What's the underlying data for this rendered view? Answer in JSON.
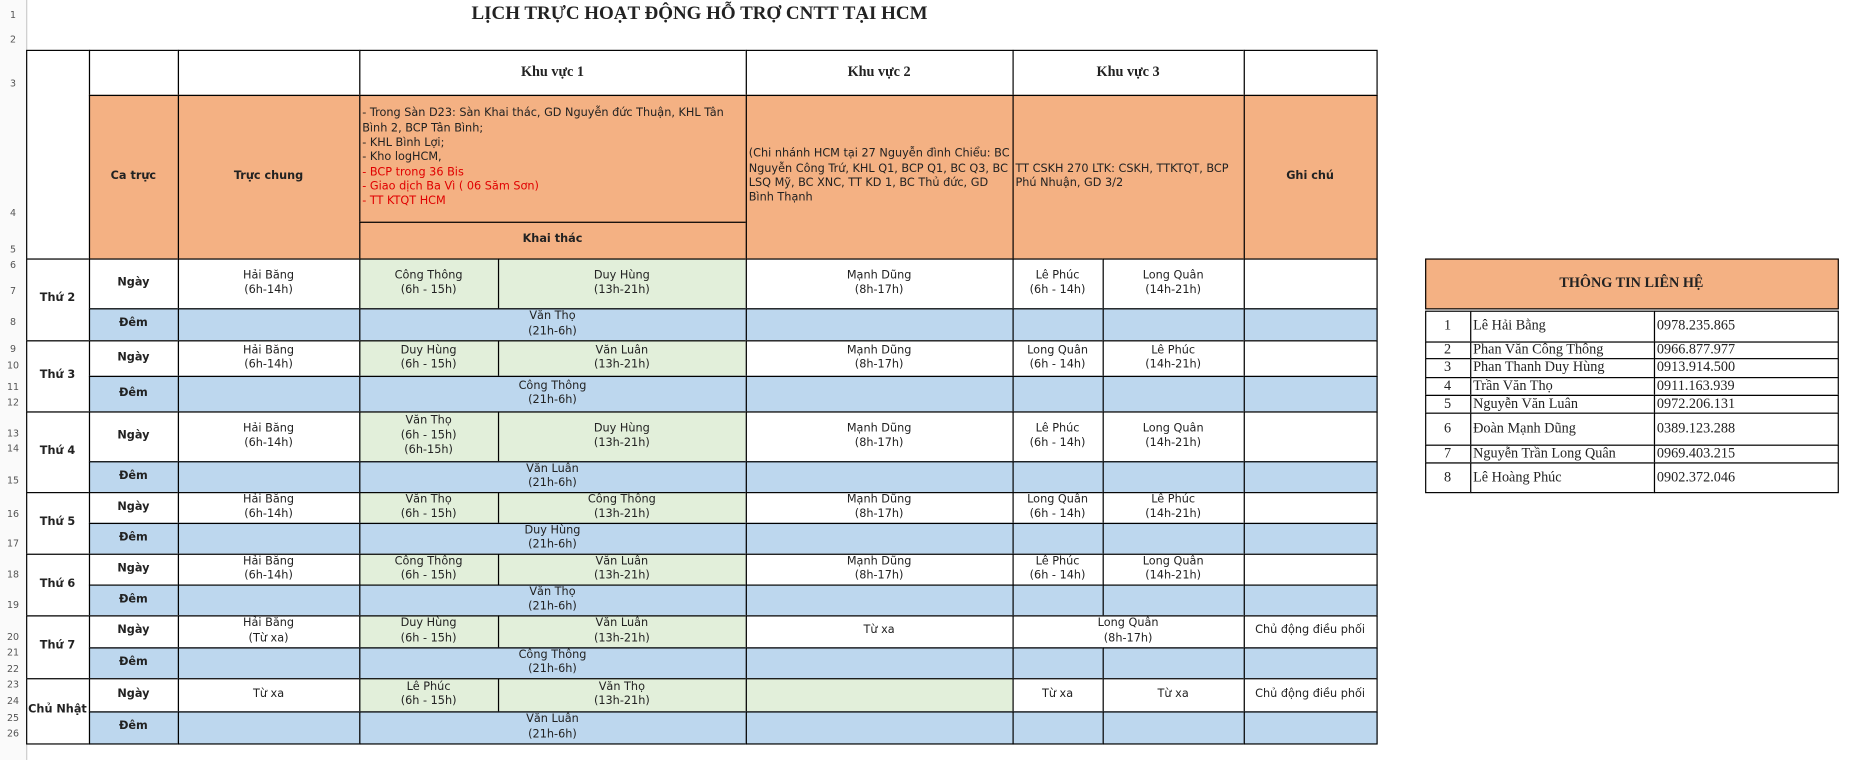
{
  "title": "LỊCH TRỰC HOẠT ĐỘNG HỖ TRỢ CNTT TẠI HCM",
  "row_numbers": [
    1,
    2,
    3,
    4,
    5,
    6,
    7,
    8,
    9,
    10,
    11,
    12,
    13,
    14,
    15,
    16,
    17,
    18,
    19,
    20,
    21,
    22,
    23,
    24,
    25,
    26
  ],
  "header": {
    "zones": [
      "Khu vực 1",
      "Khu vực 2",
      "Khu vực 3"
    ],
    "shift": "Ca trực",
    "general": "Trực chung",
    "note": "Ghi chú",
    "zone1_lines": [
      "- Trong Sàn D23: Sàn Khai thác, GD Nguyễn đức Thuận, KHL Tân Bình 2, BCP Tân Bình;",
      "- KHL Bình Lợi;",
      "- Kho logHCM,"
    ],
    "zone1_red_lines": [
      "- BCP trong 36 Bis",
      "- Giao dịch Ba Vì ( 06 Săm Sơn)",
      "- TT KTQT HCM"
    ],
    "zone1_sub": "Khai thác",
    "zone2_desc": "(Chi nhánh HCM tại 27 Nguyễn đình Chiểu: BC Nguyễn Công Trứ, KHL Q1, BCP Q1, BC Q3, BC LSQ Mỹ, BC XNC, TT KD 1, BC Thủ đức, GD Bình  Thạnh",
    "zone3_desc": "TT CSKH 270 LTK: CSKH, TTKTQT, BCP Phú Nhuận, GD 3/2"
  },
  "schedule": [
    {
      "day": "Thứ 2",
      "rows": [
        {
          "shift": "Ngày",
          "cells": {
            "general": "Hải Băng\n(6h-14h)",
            "z1a": "Công Thông\n(6h - 15h)",
            "z1b": "Duy Hùng\n(13h-21h)",
            "z2": "Mạnh Dũng\n(8h-17h)",
            "z3a": "Lê Phúc\n(6h - 14h)",
            "z3b": "Long Quân\n(14h-21h)"
          }
        },
        {
          "shift": "Đêm",
          "cells": {
            "z1": "Văn Thọ\n(21h-6h)"
          }
        }
      ]
    },
    {
      "day": "Thứ 3",
      "rows": [
        {
          "shift": "Ngày",
          "cells": {
            "general": "Hải Băng\n(6h-14h)",
            "z1a": "Duy Hùng\n(6h - 15h)",
            "z1b": "Văn Luân\n(13h-21h)",
            "z2": "Mạnh Dũng\n(8h-17h)",
            "z3a": "Long Quân\n(6h - 14h)",
            "z3b": "Lê Phúc\n(14h-21h)"
          }
        },
        {
          "shift": "Đêm",
          "cells": {
            "z1": "Công Thông\n(21h-6h)"
          }
        }
      ]
    },
    {
      "day": "Thứ 4",
      "rows": [
        {
          "shift": "Ngày",
          "cells": {
            "general": "Hải Băng\n(6h-14h)",
            "z1a": "Văn Thọ\n(6h - 15h)\n(6h-15h)",
            "z1b": "Duy Hùng\n(13h-21h)",
            "z2": "Mạnh Dũng\n(8h-17h)",
            "z3a": "Lê Phúc\n(6h - 14h)",
            "z3b": "Long Quân\n(14h-21h)"
          }
        },
        {
          "shift": "Đêm",
          "cells": {
            "z1": "Văn Luân\n(21h-6h)"
          }
        }
      ]
    },
    {
      "day": "Thứ 5",
      "rows": [
        {
          "shift": "Ngày",
          "cells": {
            "general": "Hải Băng\n(6h-14h)",
            "z1a": "Văn Thọ\n(6h - 15h)",
            "z1b": "Công Thông\n(13h-21h)",
            "z2": "Mạnh Dũng\n(8h-17h)",
            "z3a": "Long Quân\n(6h - 14h)",
            "z3b": "Lê Phúc\n(14h-21h)"
          }
        },
        {
          "shift": "Đêm",
          "cells": {
            "z1": "Duy Hùng\n(21h-6h)"
          }
        }
      ]
    },
    {
      "day": "Thứ 6",
      "rows": [
        {
          "shift": "Ngày",
          "cells": {
            "general": "Hải Băng\n(6h-14h)",
            "z1a": "Công Thông\n(6h - 15h)",
            "z1b": "Văn Luân\n(13h-21h)",
            "z2": "Mạnh Dũng\n(8h-17h)",
            "z3a": "Lê Phúc\n(6h - 14h)",
            "z3b": "Long Quân\n(14h-21h)"
          }
        },
        {
          "shift": "Đêm",
          "cells": {
            "z1": "Văn Thọ\n(21h-6h)"
          }
        }
      ]
    },
    {
      "day": "Thứ 7",
      "rows": [
        {
          "shift": "Ngày",
          "cells": {
            "general": "Hải Băng\n(Từ xa)",
            "z1a": "Duy Hùng\n(6h - 15h)",
            "z1b": "Văn Luân\n(13h-21h)",
            "z2": "Từ xa",
            "z3": "Long Quân\n(8h-17h)",
            "note": "Chủ động điều phối"
          }
        },
        {
          "shift": "Đêm",
          "cells": {
            "z1": "Công Thông\n(21h-6h)"
          }
        }
      ]
    },
    {
      "day": "Chủ Nhật",
      "rows": [
        {
          "shift": "Ngày",
          "cells": {
            "general": "Từ xa",
            "z1a": "Lê Phúc\n(6h - 15h)",
            "z1b": "Văn Thọ\n(13h-21h)",
            "z3a": "Từ xa",
            "z3b": "Từ xa",
            "note": "Chủ động điều phối"
          }
        },
        {
          "shift": "Đêm",
          "cells": {
            "z1": "Văn Luân\n(21h-6h)"
          }
        }
      ]
    }
  ],
  "contacts": {
    "title": "THÔNG TIN LIÊN HỆ",
    "rows": [
      [
        1,
        "Lê Hải Bằng",
        "0978.235.865"
      ],
      [
        2,
        "Phan Văn Công Thông",
        "0966.877.977"
      ],
      [
        3,
        "Phan Thanh Duy Hùng",
        "0913.914.500"
      ],
      [
        4,
        "Trần Văn Thọ",
        "0911.163.939"
      ],
      [
        5,
        "Nguyễn Văn Luân",
        "0972.206.131"
      ],
      [
        6,
        "Đoàn Mạnh Dũng",
        "0389.123.288"
      ],
      [
        7,
        "Nguyễn Trần Long Quân",
        "0969.403.215"
      ],
      [
        8,
        "Lê Hoàng Phúc",
        "0902.372.046"
      ]
    ]
  }
}
